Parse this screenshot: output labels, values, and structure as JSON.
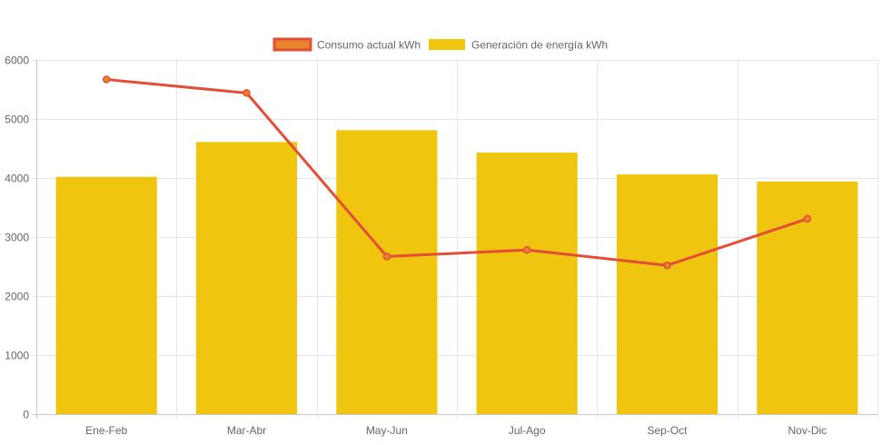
{
  "chart_data": {
    "type": "bar",
    "categories": [
      "Ene-Feb",
      "Mar-Abr",
      "May-Jun",
      "Jul-Ago",
      "Sep-Oct",
      "Nov-Dic"
    ],
    "series": [
      {
        "name": "Consumo actual kWh",
        "type": "line",
        "values": [
          5670,
          5440,
          2670,
          2780,
          2520,
          3310
        ],
        "color": "#e24e36",
        "legend_fill": "#e8832e"
      },
      {
        "name": "Generación de energía kWh",
        "type": "bar",
        "values": [
          4020,
          4610,
          4810,
          4430,
          4060,
          3940
        ],
        "color": "#f0c50f"
      }
    ],
    "ylim": [
      0,
      6000
    ],
    "yticks": [
      "0",
      "1000",
      "2000",
      "3000",
      "4000",
      "5000",
      "6000"
    ],
    "legend_position": "top-center",
    "grid": true
  }
}
